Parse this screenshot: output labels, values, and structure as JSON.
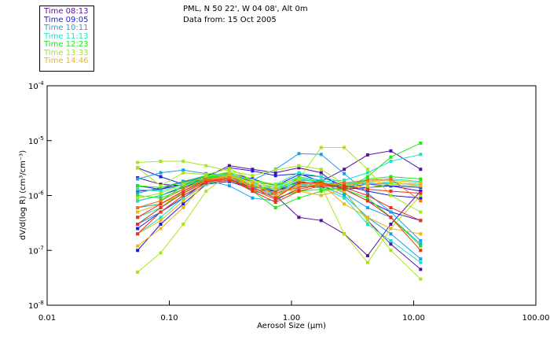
{
  "header": {
    "line1": "PML, N 50 22', W 04 08', Alt 0m",
    "line2": "Data from: 15 Oct 2005"
  },
  "legend": [
    {
      "label": "Time 08:13",
      "color": "#5a0fa0"
    },
    {
      "label": "Time 09:05",
      "color": "#1a1ae6"
    },
    {
      "label": "Time 10:11",
      "color": "#1a9ef0"
    },
    {
      "label": "Time 11:13",
      "color": "#18e6c8"
    },
    {
      "label": "Time 12:23",
      "color": "#22e61a"
    },
    {
      "label": "Time 13:33",
      "color": "#a6e61a"
    },
    {
      "label": "Time 14:46",
      "color": "#f0b418"
    }
  ],
  "chart_data": {
    "type": "line",
    "title": "PML, N 50 22', W 04 08', Alt 0m",
    "subtitle": "Data from: 15 Oct 2005",
    "xlabel": "Aerosol Size (μm)",
    "ylabel": "dV/d(log R) (cm³/cm⁻³)",
    "xscale": "log",
    "yscale": "log",
    "xlim": [
      0.01,
      100
    ],
    "ylim": [
      1e-08,
      0.0001
    ],
    "x_tick_labels": [
      "0.01",
      "0.10",
      "1.00",
      "10.00",
      "100.00"
    ],
    "y_tick_labels": [
      {
        "base": "10",
        "exp": "-4"
      },
      {
        "base": "10",
        "exp": "-5"
      },
      {
        "base": "10",
        "exp": "-6"
      },
      {
        "base": "10",
        "exp": "-7"
      },
      {
        "base": "10",
        "exp": "-8"
      }
    ],
    "legend_position": "top-left",
    "x": [
      0.055,
      0.085,
      0.13,
      0.2,
      0.31,
      0.48,
      0.74,
      1.15,
      1.75,
      2.7,
      4.2,
      6.5,
      11.4
    ],
    "series": [
      {
        "name": "Time 08:13",
        "color": "#5a0fa0",
        "values": [
          2.1e-06,
          1.6e-06,
          1.5e-06,
          2.2e-06,
          3.5e-06,
          3e-06,
          2.6e-06,
          3.2e-06,
          2.6e-06,
          1.2e-06,
          3.5e-07,
          1.3e-07,
          4.5e-08
        ]
      },
      {
        "name": "Time 08:13",
        "color": "#5a0fa0",
        "values": [
          1.2e-06,
          1.3e-06,
          1.6e-06,
          2e-06,
          2.4e-06,
          1.8e-06,
          1e-06,
          4e-07,
          3.5e-07,
          2e-07,
          8e-08,
          3e-07,
          1.2e-06
        ]
      },
      {
        "name": "Time 08:13",
        "color": "#5a0fa0",
        "values": [
          8e-07,
          1e-06,
          1.4e-06,
          2e-06,
          2.2e-06,
          1.5e-06,
          1.2e-06,
          1.6e-06,
          1.8e-06,
          3e-06,
          5.5e-06,
          6.5e-06,
          3e-06
        ]
      },
      {
        "name": "Time 09:05",
        "color": "#1a1ae6",
        "values": [
          3.2e-06,
          2.2e-06,
          1.6e-06,
          2.3e-06,
          3.2e-06,
          2.8e-06,
          2.3e-06,
          2.5e-06,
          1.8e-06,
          1.3e-06,
          1.4e-06,
          1.5e-06,
          1.2e-06
        ]
      },
      {
        "name": "Time 09:05",
        "color": "#1a1ae6",
        "values": [
          1.5e-06,
          1.3e-06,
          1.8e-06,
          2.1e-06,
          2.6e-06,
          2e-06,
          1.5e-06,
          2.4e-06,
          2.2e-06,
          1.5e-06,
          1.2e-06,
          1e-06,
          9e-07
        ]
      },
      {
        "name": "Time 09:05",
        "color": "#1a1ae6",
        "values": [
          2.5e-07,
          5e-07,
          9e-07,
          1.8e-06,
          2e-06,
          1.4e-06,
          1e-06,
          1.5e-06,
          1.4e-06,
          1.3e-06,
          8e-07,
          5e-07,
          3.5e-07
        ]
      },
      {
        "name": "Time 09:05",
        "color": "#1a1ae6",
        "values": [
          1e-07,
          3e-07,
          7e-07,
          1.6e-06,
          1.8e-06,
          1.3e-06,
          1.2e-06,
          1.8e-06,
          1.6e-06,
          1.4e-06,
          1.6e-06,
          1.5e-06,
          1.4e-06
        ]
      },
      {
        "name": "Time 10:11",
        "color": "#1a9ef0",
        "values": [
          2e-06,
          2.6e-06,
          2.9e-06,
          2.5e-06,
          2.4e-06,
          1.9e-06,
          3e-06,
          5.8e-06,
          5.6e-06,
          2.5e-06,
          1.1e-06,
          5e-07,
          1.5e-07
        ]
      },
      {
        "name": "Time 10:11",
        "color": "#1a9ef0",
        "values": [
          1.1e-06,
          1.4e-06,
          1.8e-06,
          2.3e-06,
          2e-06,
          1.2e-06,
          1e-06,
          1.6e-06,
          1.5e-06,
          1e-06,
          4e-07,
          2e-07,
          7e-08
        ]
      },
      {
        "name": "Time 10:11",
        "color": "#1a9ef0",
        "values": [
          6e-07,
          7e-07,
          1.2e-06,
          1.9e-06,
          1.5e-06,
          9e-07,
          8e-07,
          1.4e-06,
          1.8e-06,
          1.1e-06,
          6e-07,
          4e-07,
          1.3e-07
        ]
      },
      {
        "name": "Time 10:11",
        "color": "#1a9ef0",
        "values": [
          3e-07,
          5e-07,
          1e-06,
          1.7e-06,
          1.9e-06,
          1.4e-06,
          1.3e-06,
          2e-06,
          1.7e-06,
          1.5e-06,
          1.7e-06,
          1.6e-06,
          1.5e-06
        ]
      },
      {
        "name": "Time 11:13",
        "color": "#18e6c8",
        "values": [
          8e-07,
          1e-06,
          1.5e-06,
          2e-06,
          2.3e-06,
          1.6e-06,
          1.4e-06,
          2.2e-06,
          1.9e-06,
          1.5e-06,
          1.9e-06,
          2e-06,
          1.8e-06
        ]
      },
      {
        "name": "Time 11:13",
        "color": "#18e6c8",
        "values": [
          4e-07,
          6e-07,
          1.1e-06,
          1.8e-06,
          2e-06,
          1.3e-06,
          1.1e-06,
          1.7e-06,
          1.4e-06,
          9e-07,
          3e-07,
          1.5e-07,
          6e-08
        ]
      },
      {
        "name": "Time 11:13",
        "color": "#18e6c8",
        "values": [
          2e-07,
          4e-07,
          9e-07,
          1.6e-06,
          2.1e-06,
          1.5e-06,
          1.3e-06,
          1.9e-06,
          1.8e-06,
          1.9e-06,
          2.6e-06,
          4.2e-06,
          5.6e-06
        ]
      },
      {
        "name": "Time 11:13",
        "color": "#18e6c8",
        "values": [
          1.3e-06,
          1.2e-06,
          1.6e-06,
          2.2e-06,
          2.5e-06,
          1.7e-06,
          1.6e-06,
          2.6e-06,
          2.2e-06,
          1.7e-06,
          1.6e-06,
          1.7e-06,
          1.6e-06
        ]
      },
      {
        "name": "Time 12:23",
        "color": "#22e61a",
        "values": [
          1e-06,
          9e-07,
          1.3e-06,
          2.1e-06,
          2.4e-06,
          1.4e-06,
          9e-07,
          1.2e-06,
          1.3e-06,
          1.3e-06,
          2.2e-06,
          5e-06,
          9e-06
        ]
      },
      {
        "name": "Time 12:23",
        "color": "#22e61a",
        "values": [
          6e-07,
          8e-07,
          1.5e-06,
          2.2e-06,
          2.3e-06,
          1.2e-06,
          6e-07,
          9e-07,
          1.2e-06,
          1.4e-06,
          2e-06,
          2.2e-06,
          2e-06
        ]
      },
      {
        "name": "Time 12:23",
        "color": "#22e61a",
        "values": [
          3e-07,
          6e-07,
          1.2e-06,
          2e-06,
          2.4e-06,
          1.5e-06,
          1.3e-06,
          1.7e-06,
          1.6e-06,
          1.6e-06,
          1.8e-06,
          1.9e-06,
          1.7e-06
        ]
      },
      {
        "name": "Time 12:23",
        "color": "#22e61a",
        "values": [
          1.5e-06,
          1.4e-06,
          1.7e-06,
          2.3e-06,
          2.6e-06,
          1.9e-06,
          1.5e-06,
          2.1e-06,
          1.8e-06,
          1.3e-06,
          9e-07,
          4e-07,
          1.2e-07
        ]
      },
      {
        "name": "Time 13:33",
        "color": "#a6e61a",
        "values": [
          4e-08,
          9e-08,
          3e-07,
          1.2e-06,
          2.4e-06,
          1.6e-06,
          1.1e-06,
          1.4e-06,
          1.5e-06,
          1.2e-06,
          3.5e-07,
          1e-07,
          3e-08
        ]
      },
      {
        "name": "Time 13:33",
        "color": "#a6e61a",
        "values": [
          9e-07,
          1.1e-06,
          1.6e-06,
          2.2e-06,
          2.7e-06,
          1.8e-06,
          1.4e-06,
          1.9e-06,
          1.5e-06,
          2e-07,
          6e-08,
          2.5e-07,
          1e-06
        ]
      },
      {
        "name": "Time 13:33",
        "color": "#a6e61a",
        "values": [
          4e-06,
          4.2e-06,
          4.2e-06,
          3.5e-06,
          2.8e-06,
          2.3e-06,
          2.9e-06,
          3.5e-06,
          3e-06,
          1.6e-06,
          1.4e-06,
          1.6e-06,
          1.5e-06
        ]
      },
      {
        "name": "Time 13:33",
        "color": "#a6e61a",
        "values": [
          3.2e-06,
          1.5e-06,
          2.6e-06,
          2.4e-06,
          3.1e-06,
          1.9e-06,
          1.6e-06,
          2e-06,
          7.5e-06,
          7.5e-06,
          3e-06,
          1e-06,
          5e-07
        ]
      },
      {
        "name": "Time 14:46",
        "color": "#f0b418",
        "values": [
          1.2e-07,
          2.5e-07,
          6e-07,
          1.8e-06,
          2.3e-06,
          1.5e-06,
          1.1e-06,
          1.6e-06,
          1.7e-06,
          1.5e-06,
          1.8e-06,
          1.9e-06,
          1.7e-06
        ]
      },
      {
        "name": "Time 14:46",
        "color": "#f0b418",
        "values": [
          2e-07,
          3.5e-07,
          8e-07,
          1.7e-06,
          2.2e-06,
          1.4e-06,
          1e-06,
          1.5e-06,
          1.6e-06,
          7e-07,
          4e-07,
          2.5e-07,
          2e-07
        ]
      },
      {
        "name": "Time 14:46",
        "color": "#f0b418",
        "values": [
          5e-07,
          7e-07,
          1.1e-06,
          1.9e-06,
          2.4e-06,
          1.7e-06,
          1.3e-06,
          1.2e-06,
          1e-06,
          1.3e-06,
          1.6e-06,
          1.8e-06,
          1.5e-06
        ]
      },
      {
        "name": "Time 14:46",
        "color": "#f03018",
        "values": [
          3e-07,
          6e-07,
          1.1e-06,
          1.8e-06,
          2e-06,
          1.3e-06,
          8.5e-07,
          1.3e-06,
          1.6e-06,
          1.5e-06,
          1.3e-06,
          1.2e-06,
          1.1e-06
        ]
      },
      {
        "name": "Time 14:46",
        "color": "#f03018",
        "values": [
          4e-07,
          7e-07,
          1.2e-06,
          1.9e-06,
          2e-06,
          1.2e-06,
          7.5e-07,
          1.2e-06,
          1.5e-06,
          1.4e-06,
          1e-06,
          6e-07,
          3.5e-07
        ]
      },
      {
        "name": "Time 14:46",
        "color": "#f03018",
        "values": [
          2e-07,
          5e-07,
          1e-06,
          1.7e-06,
          1.9e-06,
          1.4e-06,
          9e-07,
          1.7e-06,
          1.7e-06,
          1.3e-06,
          8e-07,
          4e-07,
          1e-07
        ]
      },
      {
        "name": "Time 14:46",
        "color": "#f07018",
        "values": [
          6e-07,
          8e-07,
          1.3e-06,
          2e-06,
          2.1e-06,
          1.5e-06,
          1.1e-06,
          1.4e-06,
          1.6e-06,
          1.7e-06,
          1.9e-06,
          2e-06,
          8e-07
        ]
      }
    ]
  }
}
